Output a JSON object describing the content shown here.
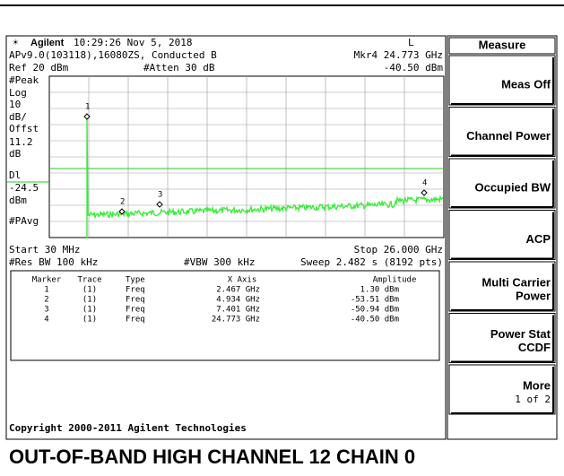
{
  "status": {
    "brand": "Agilent",
    "time": "10:29:26  Nov 5, 2018",
    "mode": "L"
  },
  "info": {
    "line1": "APv9.0(103118),16080ZS, Conducted B",
    "marker_readout": "Mkr4  24.773 GHz",
    "ref": "Ref 20 dBm",
    "atten": "#Atten 30 dB",
    "marker_amplitude": "-40.50 dBm"
  },
  "left_labels": [
    "#Peak",
    "Log",
    "10",
    "dB/",
    "Offst",
    "11.2",
    "dB",
    "Dl",
    "-24.5",
    "dBm",
    "#PAvg"
  ],
  "markers_on_plot": [
    "1",
    "2",
    "3",
    "4"
  ],
  "footer": {
    "start": "Start 30 MHz",
    "stop": "Stop 26.000 GHz",
    "rbw": "#Res BW 100 kHz",
    "vbw": "#VBW 300 kHz",
    "sweep": "Sweep 2.482 s (8192 pts)"
  },
  "table": {
    "headers": [
      "Marker",
      "Trace",
      "Type",
      "X Axis",
      "Amplitude"
    ],
    "rows": [
      [
        "1",
        "(1)",
        "Freq",
        "2.467 GHz",
        "1.30 dBm"
      ],
      [
        "2",
        "(1)",
        "Freq",
        "4.934 GHz",
        "-53.51 dBm"
      ],
      [
        "3",
        "(1)",
        "Freq",
        "7.401 GHz",
        "-50.94 dBm"
      ],
      [
        "4",
        "(1)",
        "Freq",
        "24.773 GHz",
        "-40.50 dBm"
      ]
    ]
  },
  "copyright": "Copyright 2000-2011 Agilent Technologies",
  "menu": {
    "title": "Measure",
    "keys": [
      [
        "Meas Off"
      ],
      [
        "Channel Power"
      ],
      [
        "Occupied BW"
      ],
      [
        "ACP"
      ],
      [
        "Multi Carrier",
        "Power"
      ],
      [
        "Power Stat",
        "CCDF"
      ],
      [
        "More",
        "1 of 2"
      ]
    ]
  },
  "caption": "OUT-OF-BAND HIGH CHANNEL 12 CHAIN 0"
}
